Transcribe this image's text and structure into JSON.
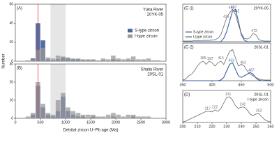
{
  "shared_labels": {
    "x": "Detrital zircon U–Pb age (Ma)",
    "y": "Number"
  },
  "chart_data": [
    {
      "type": "histogram",
      "panel": "(A)",
      "river": "Yuka River",
      "sample": "20YK-05",
      "bins": [
        0,
        100,
        200,
        300,
        400,
        500,
        600,
        700,
        800,
        900,
        1000,
        1100,
        1200,
        1300,
        1400,
        1500,
        1600,
        1700,
        1800,
        1900,
        2000,
        2100,
        2200,
        2300,
        2400,
        2500,
        2600,
        2700,
        2800,
        2900,
        3000
      ],
      "series": [
        {
          "name": "S-type zircon",
          "color": "#4a66a0",
          "values": [
            0,
            0,
            0,
            3,
            40,
            22,
            2,
            1,
            2,
            4,
            3,
            2,
            2,
            1,
            1,
            1,
            0,
            1,
            0,
            2,
            1,
            0,
            1,
            1,
            0,
            0,
            0,
            0,
            0,
            0
          ]
        },
        {
          "name": "I-type zircon",
          "color": "#9a9a9a",
          "values": [
            0,
            0,
            1,
            2,
            12,
            14,
            4,
            3,
            6,
            5,
            4,
            3,
            3,
            2,
            2,
            2,
            1,
            3,
            2,
            6,
            3,
            2,
            3,
            5,
            2,
            2,
            3,
            1,
            1,
            0
          ]
        }
      ],
      "xlim": [
        0,
        3000
      ],
      "ylim": [
        0,
        60
      ],
      "yticks": [
        0,
        20,
        40,
        60
      ],
      "highlight": [
        700,
        1000
      ],
      "ref_line": 450,
      "legend": "right"
    },
    {
      "type": "histogram",
      "panel": "(B)",
      "river": "Shaliu River",
      "sample": "20SL-01",
      "bins": [
        0,
        100,
        200,
        300,
        400,
        500,
        600,
        700,
        800,
        900,
        1000,
        1100,
        1200,
        1300,
        1400,
        1500,
        1600,
        1700,
        1800,
        1900,
        2000,
        2100,
        2200,
        2300,
        2400,
        2500,
        2600,
        2700,
        2800,
        2900,
        3000
      ],
      "series": [
        {
          "name": "S-type zircon",
          "color": "#4a66a0",
          "values": [
            0,
            0,
            0,
            2,
            18,
            6,
            2,
            1,
            4,
            12,
            4,
            2,
            1,
            1,
            0,
            1,
            0,
            0,
            0,
            1,
            0,
            0,
            0,
            1,
            0,
            0,
            0,
            0,
            0,
            0
          ]
        },
        {
          "name": "I-type zircon",
          "color": "#9a9a9a",
          "values": [
            0,
            0,
            1,
            3,
            20,
            8,
            3,
            2,
            10,
            14,
            6,
            4,
            3,
            2,
            2,
            2,
            1,
            1,
            2,
            3,
            2,
            1,
            2,
            2,
            1,
            1,
            1,
            0,
            0,
            0
          ]
        }
      ],
      "xlim": [
        0,
        3000
      ],
      "xticks": [
        0,
        500,
        1000,
        1500,
        2000,
        2500,
        3000
      ],
      "ylim": [
        0,
        30
      ],
      "yticks": [
        0,
        10,
        20,
        30
      ],
      "highlight": [
        700,
        1000
      ],
      "ref_line": 450
    },
    {
      "type": "line",
      "panel": "(C-1)",
      "sample": "20YK-05",
      "x": [
        350,
        355,
        360,
        365,
        370,
        375,
        380,
        385,
        390,
        395,
        400,
        405,
        410,
        415,
        420,
        425,
        430,
        435,
        440,
        445,
        450,
        455,
        460,
        465,
        470,
        475,
        480,
        485,
        490,
        495,
        500
      ],
      "series": [
        {
          "name": "S-type zircon",
          "color": "#3d5f9e",
          "values": [
            0,
            0,
            0,
            0,
            0,
            0,
            0,
            0,
            0,
            0,
            0,
            0,
            0,
            0,
            0.1,
            0.3,
            0.6,
            0.9,
            0.95,
            0.6,
            0.2,
            0.05,
            0,
            0,
            0,
            0,
            0,
            0,
            0,
            0,
            0
          ],
          "peaks": [
            437,
            442
          ]
        },
        {
          "name": "I-type zircon",
          "color": "#666666",
          "values": [
            0.02,
            0.02,
            0.02,
            0.02,
            0.03,
            0.03,
            0.03,
            0.04,
            0.04,
            0.04,
            0.05,
            0.06,
            0.1,
            0.2,
            0.45,
            0.7,
            0.85,
            0.95,
            0.8,
            0.5,
            0.25,
            0.1,
            0.08,
            0.12,
            0.25,
            0.2,
            0.06,
            0.03,
            0.02,
            0.02,
            0.02
          ],
          "peaks": [
            424,
            433,
            472
          ]
        }
      ],
      "xlim": [
        350,
        500
      ],
      "ylim": [
        0,
        1.1
      ],
      "legend": "left"
    },
    {
      "type": "line",
      "panel": "(C-2)",
      "sample": "20SL-01",
      "x": [
        350,
        355,
        360,
        365,
        370,
        375,
        380,
        385,
        390,
        395,
        400,
        405,
        410,
        415,
        420,
        425,
        430,
        435,
        440,
        445,
        450,
        455,
        460,
        465,
        470,
        475,
        480,
        485,
        490,
        495,
        500
      ],
      "series": [
        {
          "name": "S-type zircon",
          "color": "#3d5f9e",
          "values": [
            0,
            0,
            0,
            0,
            0,
            0,
            0,
            0,
            0,
            0,
            0,
            0,
            0,
            0.02,
            0.1,
            0.3,
            0.5,
            0.55,
            0.35,
            0.15,
            0.1,
            0.15,
            0.2,
            0.25,
            0.2,
            0.08,
            0.02,
            0,
            0,
            0,
            0
          ],
          "peaks": [
            433,
            467
          ]
        },
        {
          "name": "I-type zircon",
          "color": "#666666",
          "values": [
            0.02,
            0.05,
            0.15,
            0.2,
            0.3,
            0.45,
            0.55,
            0.6,
            0.5,
            0.6,
            0.55,
            0.45,
            0.55,
            0.6,
            0.5,
            0.7,
            0.9,
            0.95,
            0.7,
            0.45,
            0.5,
            0.45,
            0.3,
            0.2,
            0.15,
            0.1,
            0.05,
            0.03,
            0.02,
            0.02,
            0.02
          ],
          "peaks": [
            385,
            397,
            415,
            453
          ]
        }
      ],
      "xlim": [
        350,
        500
      ],
      "xticks": [
        350,
        400,
        450,
        500
      ],
      "ylim": [
        0,
        1.15
      ]
    },
    {
      "type": "line",
      "panel": "(D)",
      "sample": "20SL-01",
      "note": "I-type zircon",
      "x": [
        200,
        202,
        204,
        206,
        208,
        210,
        212,
        214,
        216,
        218,
        220,
        222,
        224,
        226,
        228,
        230,
        232,
        234,
        236,
        238,
        240,
        242,
        244,
        246,
        248,
        250,
        252,
        254,
        256,
        258,
        260
      ],
      "series": [
        {
          "name": "I-type zircon",
          "color": "#666666",
          "values": [
            0.02,
            0.05,
            0.1,
            0.15,
            0.2,
            0.25,
            0.3,
            0.35,
            0.4,
            0.4,
            0.38,
            0.45,
            0.4,
            0.5,
            0.7,
            0.9,
            0.92,
            0.8,
            0.6,
            0.5,
            0.55,
            0.55,
            0.45,
            0.3,
            0.25,
            0.3,
            0.32,
            0.2,
            0.1,
            0.05,
            0.02
          ],
          "peaks": [
            217,
            222,
            231,
            241,
            252
          ]
        }
      ],
      "xlim": [
        200,
        260
      ],
      "xticks": [
        200,
        210,
        220,
        230,
        240,
        250,
        260
      ],
      "ylim": [
        0,
        1.15
      ]
    }
  ]
}
